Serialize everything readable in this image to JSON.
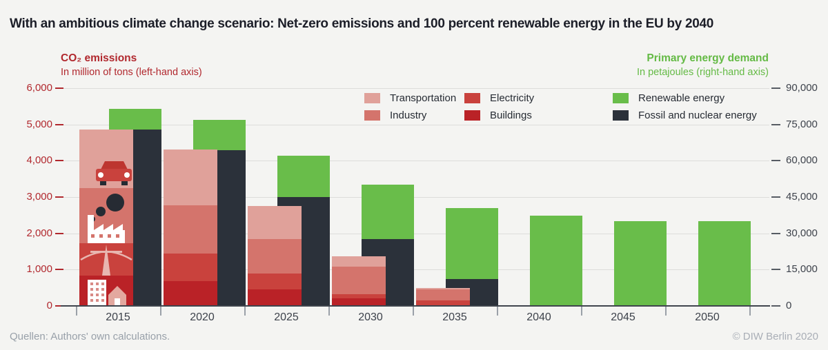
{
  "title": "With an ambitious climate change scenario: Net-zero emissions and 100 percent renewable energy in the EU by 2040",
  "left_axis": {
    "heading": "CO₂ emissions",
    "subheading": "In million of tons (left-hand axis)",
    "color": "#b1282e",
    "ticks": [
      "6,000",
      "5,000",
      "4,000",
      "3,000",
      "2,000",
      "1,000",
      "0"
    ]
  },
  "right_axis": {
    "heading": "Primary energy demand",
    "subheading": "In petajoules (right-hand axis)",
    "color": "#64ba45",
    "ticks": [
      "90,000",
      "75,000",
      "60,000",
      "45,000",
      "30,000",
      "15,000",
      "0"
    ]
  },
  "legend": {
    "columns": [
      [
        {
          "label": "Transportation",
          "color": "#e0a19a"
        },
        {
          "label": "Industry",
          "color": "#d4746c"
        }
      ],
      [
        {
          "label": "Electricity",
          "color": "#c9423d"
        },
        {
          "label": "Buildings",
          "color": "#ba2227"
        }
      ],
      [
        {
          "label": "Renewable energy",
          "color": "#69bd4a"
        },
        {
          "label": "Fossil and nuclear energy",
          "color": "#2b313a"
        }
      ]
    ]
  },
  "footer": {
    "source": "Quellen: Authors' own calculations.",
    "copyright": "© DIW Berlin 2020"
  },
  "chart_data": {
    "type": "bar",
    "categories": [
      "2015",
      "2020",
      "2025",
      "2030",
      "2035",
      "2040",
      "2045",
      "2050"
    ],
    "co2": {
      "title": "CO₂ emissions",
      "unit": "million tons",
      "axis": "left",
      "ylim": [
        0,
        6000
      ],
      "stack_order_top_to_bottom": [
        "Transportation",
        "Industry",
        "Electricity",
        "Buildings"
      ],
      "series": [
        {
          "name": "Transportation",
          "color": "#e0a19a",
          "values": [
            1610,
            1540,
            910,
            290,
            50,
            0,
            0,
            0
          ]
        },
        {
          "name": "Industry",
          "color": "#d4746c",
          "values": [
            1520,
            1330,
            950,
            760,
            290,
            0,
            0,
            0
          ]
        },
        {
          "name": "Electricity",
          "color": "#c9423d",
          "values": [
            890,
            760,
            450,
            110,
            140,
            0,
            0,
            0
          ]
        },
        {
          "name": "Buildings",
          "color": "#ba2227",
          "values": [
            840,
            680,
            450,
            210,
            20,
            0,
            0,
            0
          ]
        }
      ],
      "totals": [
        4860,
        4310,
        2760,
        1370,
        500,
        0,
        0,
        0
      ]
    },
    "energy": {
      "title": "Primary energy demand",
      "unit": "petajoules",
      "axis": "right",
      "ylim": [
        0,
        90000
      ],
      "stack_order_top_to_bottom": [
        "Renewable energy",
        "Fossil and nuclear energy"
      ],
      "series": [
        {
          "name": "Renewable energy",
          "color": "#69bd4a",
          "values": [
            8500,
            12500,
            17000,
            22500,
            29500,
            37300,
            35000,
            35000
          ]
        },
        {
          "name": "Fossil and nuclear energy",
          "color": "#2b313a",
          "values": [
            73000,
            64500,
            45000,
            27500,
            11000,
            0,
            0,
            0
          ]
        }
      ],
      "totals": [
        81500,
        77000,
        62000,
        50000,
        40500,
        37300,
        35000,
        35000
      ]
    },
    "grid": true,
    "legend_position": "top-center"
  }
}
